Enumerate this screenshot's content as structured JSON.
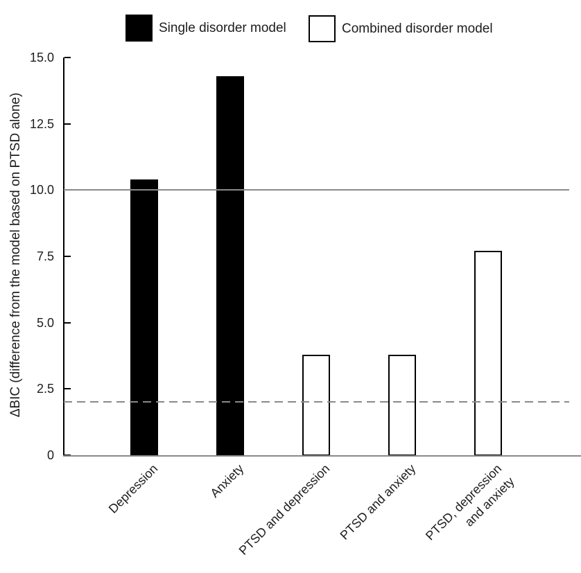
{
  "legend": {
    "items": [
      {
        "label": "Single disorder model",
        "style": "single"
      },
      {
        "label": "Combined disorder model",
        "style": "combined"
      }
    ]
  },
  "chart_data": {
    "type": "bar",
    "title": "",
    "xlabel": "",
    "ylabel": "ΔBIC (difference from the model based on PTSD alone)",
    "ylim": [
      0,
      15
    ],
    "ytick_labels": [
      "0",
      "2.5",
      "5.0",
      "7.5",
      "10.0",
      "12.5",
      "15.0"
    ],
    "grid": false,
    "legend_position": "top",
    "categories": [
      "Depression",
      "Anxiety",
      "PTSD and depression",
      "PTSD and anxiety",
      "PTSD, depression and anxiety"
    ],
    "bars": [
      {
        "category": "Depression",
        "label_lines": [
          "Depression"
        ],
        "value": 10.4,
        "series": "Single disorder model",
        "style": "single"
      },
      {
        "category": "Anxiety",
        "label_lines": [
          "Anxiety"
        ],
        "value": 14.3,
        "series": "Single disorder model",
        "style": "single"
      },
      {
        "category": "PTSD and depression",
        "label_lines": [
          "PTSD and depression"
        ],
        "value": 3.8,
        "series": "Combined disorder model",
        "style": "combined"
      },
      {
        "category": "PTSD and anxiety",
        "label_lines": [
          "PTSD and anxiety"
        ],
        "value": 3.8,
        "series": "Combined disorder model",
        "style": "combined"
      },
      {
        "category": "PTSD, depression and anxiety",
        "label_lines": [
          "PTSD, depression",
          "and anxiety"
        ],
        "value": 7.7,
        "series": "Combined disorder model",
        "style": "combined"
      }
    ],
    "reference_lines": [
      {
        "value": 10,
        "style": "solid",
        "color": "#89898d"
      },
      {
        "value": 2,
        "style": "dashed",
        "color": "#89898d"
      }
    ],
    "colors": {
      "single_fill": "#000000",
      "combined_fill": "#ffffff",
      "bar_outline": "#000000",
      "axis_line": "#89898d",
      "spine": "#000000",
      "text": "#1d1d1f"
    }
  }
}
